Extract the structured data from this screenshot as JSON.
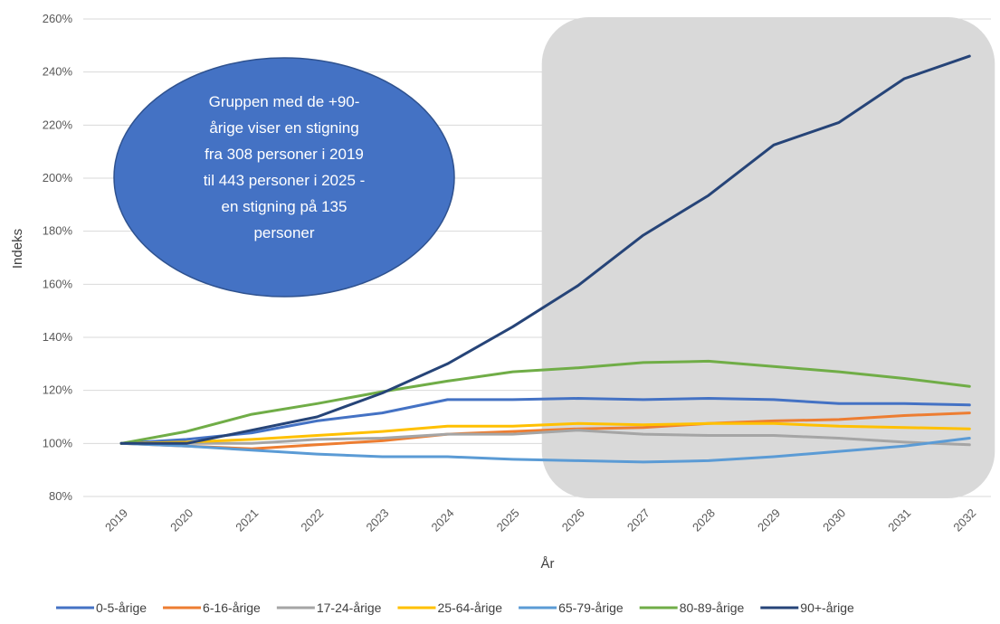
{
  "chart_data": {
    "type": "line",
    "title": "",
    "xlabel": "År",
    "ylabel": "Indeks",
    "ylim": [
      80,
      260
    ],
    "y_ticks": [
      "80%",
      "100%",
      "120%",
      "140%",
      "160%",
      "180%",
      "200%",
      "220%",
      "240%",
      "260%"
    ],
    "grid": true,
    "legend_position": "bottom",
    "x": [
      "2019",
      "2020",
      "2021",
      "2022",
      "2023",
      "2024",
      "2025",
      "2026",
      "2027",
      "2028",
      "2029",
      "2030",
      "2031",
      "2032"
    ],
    "series": [
      {
        "name": "0-5-årige",
        "color": "#4472C4",
        "values": [
          100,
          101.5,
          104,
          108.5,
          111.5,
          116.5,
          116.5,
          117,
          116.5,
          117,
          116.5,
          115,
          115,
          114.5
        ]
      },
      {
        "name": "6-16-årige",
        "color": "#ED7D31",
        "values": [
          100,
          99,
          98,
          99.5,
          101,
          103.5,
          104.5,
          105.5,
          106,
          107.5,
          108.5,
          109,
          110.5,
          111.5
        ]
      },
      {
        "name": "17-24-årige",
        "color": "#A5A5A5",
        "values": [
          100,
          100,
          100,
          101.5,
          102,
          103.5,
          103.5,
          105,
          103.5,
          103,
          103,
          102,
          100.5,
          99.5
        ]
      },
      {
        "name": "25-64-årige",
        "color": "#FFC000",
        "values": [
          100,
          100.5,
          101.5,
          103,
          104.5,
          106.5,
          106.5,
          107.5,
          107,
          107.5,
          107.5,
          106.5,
          106,
          105.5
        ]
      },
      {
        "name": "65-79-årige",
        "color": "#5B9BD5",
        "values": [
          100,
          99,
          97.5,
          96,
          95,
          95,
          94,
          93.5,
          93,
          93.5,
          95,
          97,
          99,
          102
        ]
      },
      {
        "name": "80-89-årige",
        "color": "#70AD47",
        "values": [
          100,
          104.5,
          111,
          115,
          119.5,
          123.5,
          127,
          128.5,
          130.5,
          131,
          129,
          127,
          124.5,
          121.5
        ]
      },
      {
        "name": "90+-årige",
        "color": "#264478",
        "values": [
          100,
          100,
          105,
          110,
          119,
          130,
          144,
          159.5,
          178.5,
          193.5,
          212.5,
          221,
          237.5,
          246
        ]
      }
    ],
    "highlight": {
      "from": "2026",
      "to": "2032"
    },
    "annotation": "Gruppen med de +90-årige viser en stigning fra 308 personer i 2019 til 443 personer i 2025 - en stigning på 135 personer",
    "annotation_lines": [
      "Gruppen med de +90-",
      "årige viser en stigning",
      "fra 308 personer i 2019",
      "til 443 personer i 2025 -",
      "en stigning på 135",
      "personer"
    ],
    "annotation_color": "#4472C4",
    "highlight_color": "#D9D9D9"
  }
}
